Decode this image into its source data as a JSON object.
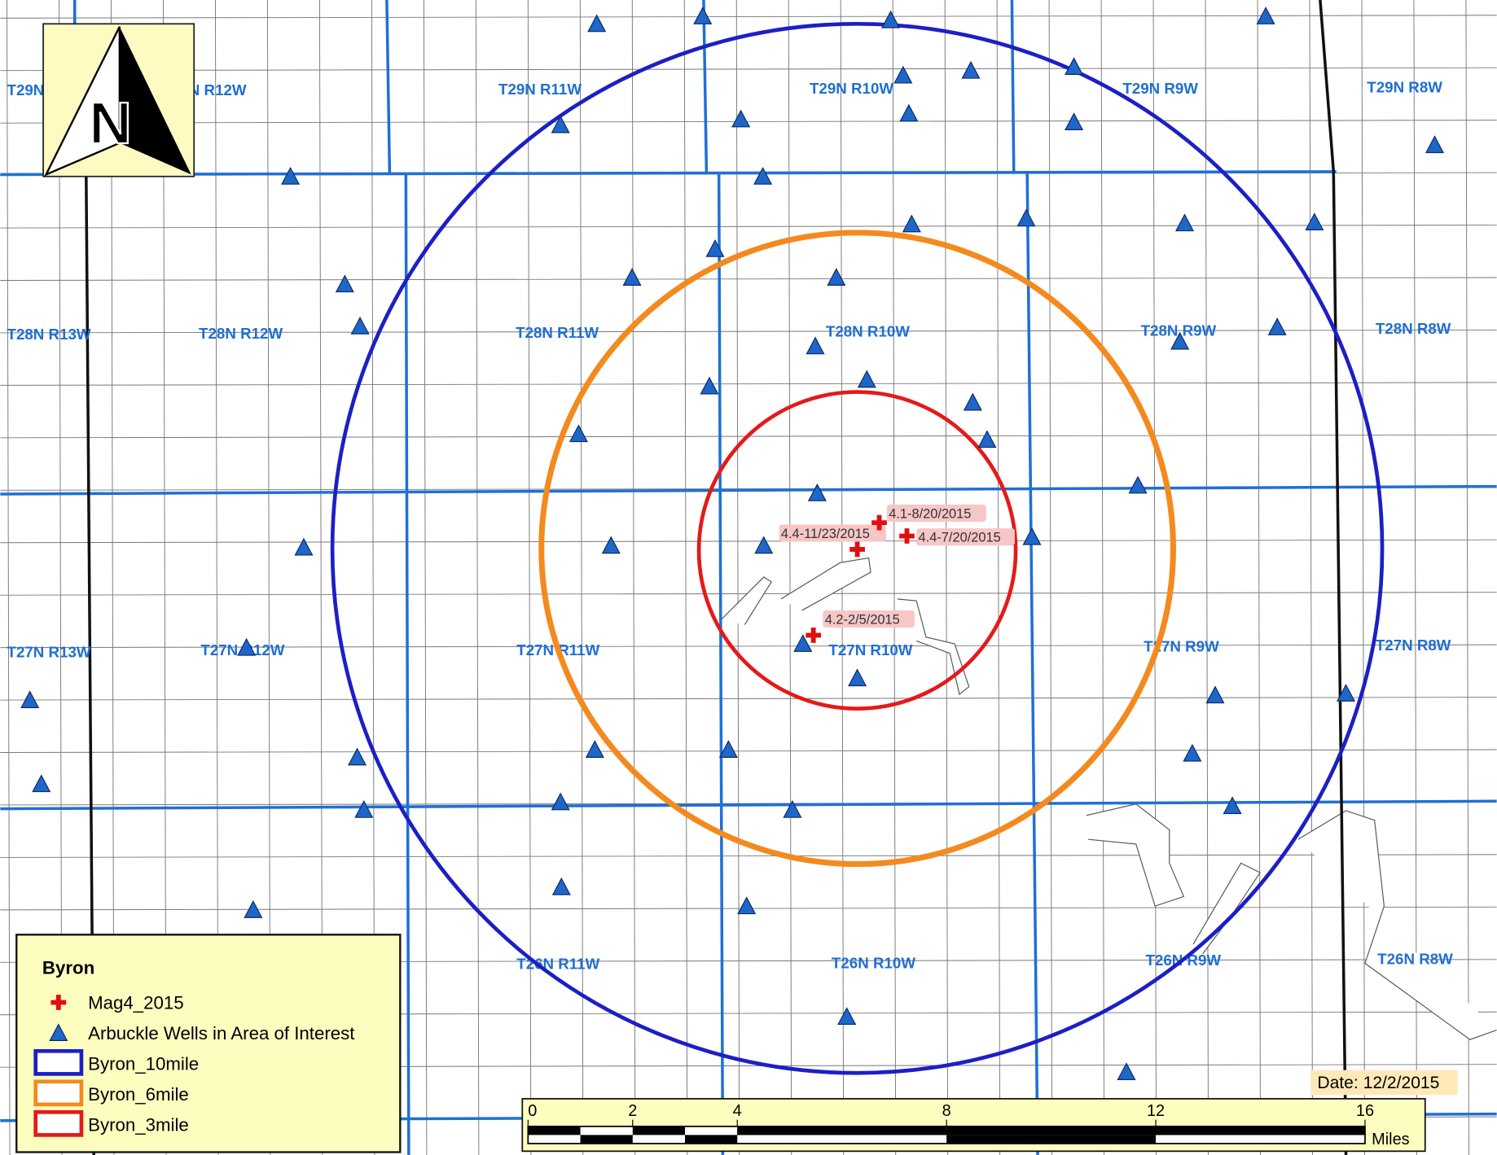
{
  "townships": [
    "T29N R13W",
    "T29N R12W",
    "T29N R11W",
    "T29N R10W",
    "T29N R9W",
    "T29N R8W",
    "T28N R13W",
    "T28N R12W",
    "T28N R11W",
    "T28N R10W",
    "T28N R9W",
    "T28N R8W",
    "T27N R13W",
    "T27N R12W",
    "T27N R11W",
    "T27N R10W",
    "T27N R9W",
    "T27N R8W",
    "T26N R11W",
    "T26N R10W",
    "T26N R9W",
    "T26N R8W"
  ],
  "events": [
    "4.4-11/23/2015",
    "4.4-7/20/2015",
    "4.1-8/20/2015",
    "4.2-2/5/2015"
  ],
  "north_arrow": "N",
  "legend": {
    "title": "Byron",
    "items": [
      "Mag4_2015",
      "Arbuckle Wells in Area of Interest",
      "Byron_10mile",
      "Byron_6mile",
      "Byron_3mile"
    ]
  },
  "scale_bar": {
    "ticks": [
      0,
      2,
      4,
      8,
      12,
      16
    ],
    "unit": "Miles"
  },
  "date_label": "Date: 12/2/2015"
}
